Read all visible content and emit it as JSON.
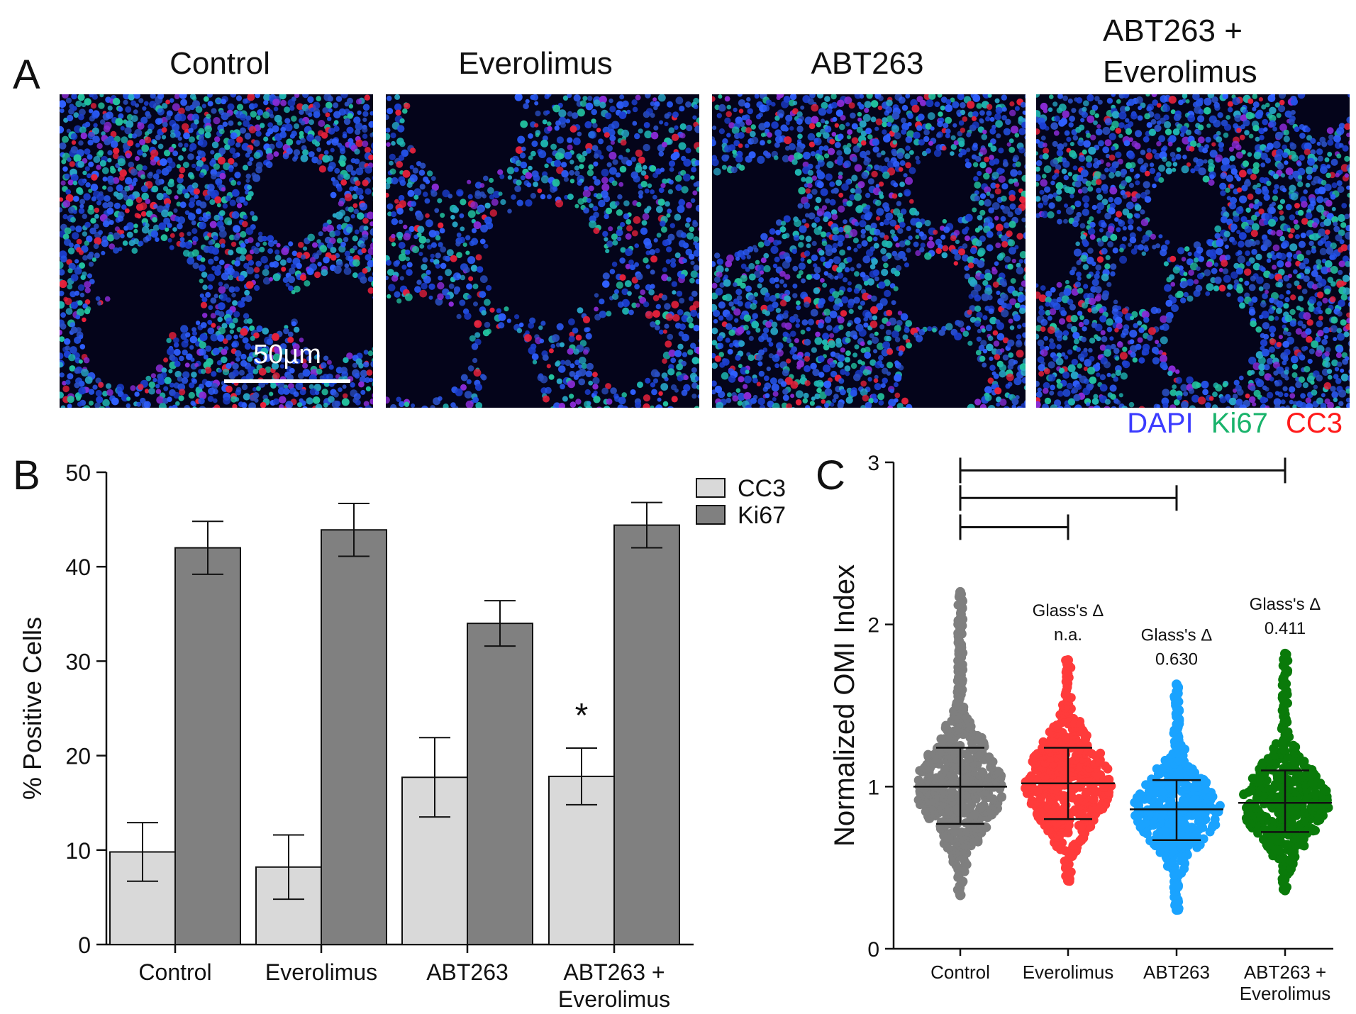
{
  "panel_a": {
    "letter": "A",
    "titles": [
      "Control",
      "Everolimus",
      "ABT263",
      "ABT263 +",
      "Everolimus"
    ],
    "scale_bar_label": "50µm",
    "legend": [
      {
        "label": "DAPI",
        "color": "#3b3bff"
      },
      {
        "label": "Ki67",
        "color": "#19b36b"
      },
      {
        "label": "CC3",
        "color": "#ff1a1a"
      }
    ],
    "images": [
      {
        "name": "control",
        "density": 0.92
      },
      {
        "name": "everolimus",
        "density": 0.62
      },
      {
        "name": "abt263",
        "density": 0.82
      },
      {
        "name": "abt263-everolimus",
        "density": 0.86
      }
    ]
  },
  "chart_data": [
    {
      "panel": "B",
      "type": "bar",
      "title": "",
      "xlabel": "",
      "ylabel": "% Positive Cells",
      "ylim": [
        0,
        50
      ],
      "yticks": [
        0,
        10,
        20,
        30,
        40,
        50
      ],
      "categories": [
        "Control",
        "Everolimus",
        "ABT263",
        "ABT263 +|Everolimus"
      ],
      "series": [
        {
          "name": "CC3",
          "color": "#d9d9d9",
          "values": [
            9.8,
            8.2,
            17.7,
            17.8
          ],
          "errors": [
            3.1,
            3.4,
            4.2,
            3.0
          ]
        },
        {
          "name": "Ki67",
          "color": "#808080",
          "values": [
            42.0,
            43.9,
            34.0,
            44.4
          ],
          "errors": [
            2.8,
            2.8,
            2.4,
            2.4
          ]
        }
      ],
      "annotations": [
        {
          "category": 3,
          "series": "CC3",
          "text": "*"
        }
      ],
      "legend_position": "top-right"
    },
    {
      "panel": "C",
      "type": "scatter",
      "title": "",
      "xlabel": "",
      "ylabel": "Normalized OMI Index",
      "ylim": [
        0,
        3
      ],
      "yticks": [
        0,
        1,
        2,
        3
      ],
      "categories": [
        "Control",
        "Everolimus",
        "ABT263",
        "ABT263 +|Everolimus"
      ],
      "groups": [
        {
          "name": "Control",
          "color": "#7f7f7f",
          "mean": 1.0,
          "sd_low": 0.77,
          "sd_high": 1.24,
          "min": 0.33,
          "max": 2.2,
          "annotation_title": "",
          "annotation_value": ""
        },
        {
          "name": "Everolimus",
          "color": "#ff3b3b",
          "mean": 1.02,
          "sd_low": 0.8,
          "sd_high": 1.24,
          "min": 0.42,
          "max": 1.78,
          "annotation_title": "Glass's Δ",
          "annotation_value": "n.a."
        },
        {
          "name": "ABT263",
          "color": "#1aa3ff",
          "mean": 0.86,
          "sd_low": 0.67,
          "sd_high": 1.04,
          "min": 0.24,
          "max": 1.63,
          "annotation_title": "Glass's Δ",
          "annotation_value": "0.630"
        },
        {
          "name": "ABT263 + Everolimus",
          "color": "#0a7a0a",
          "mean": 0.9,
          "sd_low": 0.72,
          "sd_high": 1.1,
          "min": 0.36,
          "max": 1.82,
          "annotation_title": "Glass's Δ",
          "annotation_value": "0.411"
        }
      ],
      "comparisons": [
        {
          "from": 0,
          "to": 1,
          "y": 2.6
        },
        {
          "from": 0,
          "to": 2,
          "y": 2.78
        },
        {
          "from": 0,
          "to": 3,
          "y": 2.95
        }
      ]
    }
  ]
}
